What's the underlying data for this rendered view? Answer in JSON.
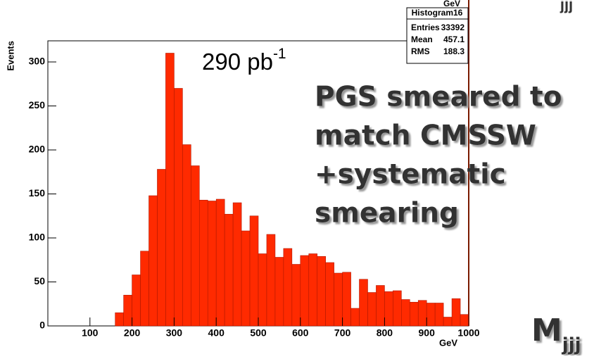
{
  "chart_data": {
    "type": "histogram",
    "color": "#ff2a00",
    "x_label": "GeV",
    "y_label": "Events",
    "bins": [
      160,
      180,
      200,
      220,
      240,
      260,
      280,
      300,
      320,
      340,
      360,
      380,
      400,
      420,
      440,
      460,
      480,
      500,
      520,
      540,
      560,
      580,
      600,
      620,
      640,
      660,
      680,
      700,
      720,
      740,
      760,
      780,
      800,
      820,
      840,
      860,
      880,
      900,
      920,
      940,
      960,
      980,
      1000
    ],
    "values": [
      15,
      35,
      58,
      85,
      148,
      178,
      310,
      270,
      206,
      182,
      143,
      142,
      144,
      127,
      140,
      108,
      125,
      82,
      104,
      78,
      88,
      70,
      80,
      82,
      79,
      72,
      60,
      61,
      20,
      53,
      38,
      46,
      39,
      40,
      30,
      27,
      29,
      26,
      26,
      10,
      31,
      13
    ],
    "xlim": [
      0,
      1000
    ],
    "xticks": [
      100,
      200,
      300,
      400,
      500,
      600,
      700,
      800,
      900,
      1000
    ],
    "ylim": [
      0,
      324
    ],
    "yticks": [
      0,
      50,
      100,
      150,
      200,
      250,
      300
    ],
    "stats": {
      "title": "Histogram16",
      "rows": [
        [
          "Entries",
          33392
        ],
        [
          "Mean",
          457.1
        ],
        [
          "RMS",
          188.3
        ]
      ]
    },
    "annotations": {
      "lumi": "290 pb",
      "lumi_exp": "-1",
      "text_lines": [
        "PGS smeared to",
        "match CMSSW",
        "+systematic",
        "smearing"
      ],
      "mass": "M",
      "mass_sub": "jjj",
      "top_unit": "GeV",
      "top_sub": "jjj"
    }
  }
}
